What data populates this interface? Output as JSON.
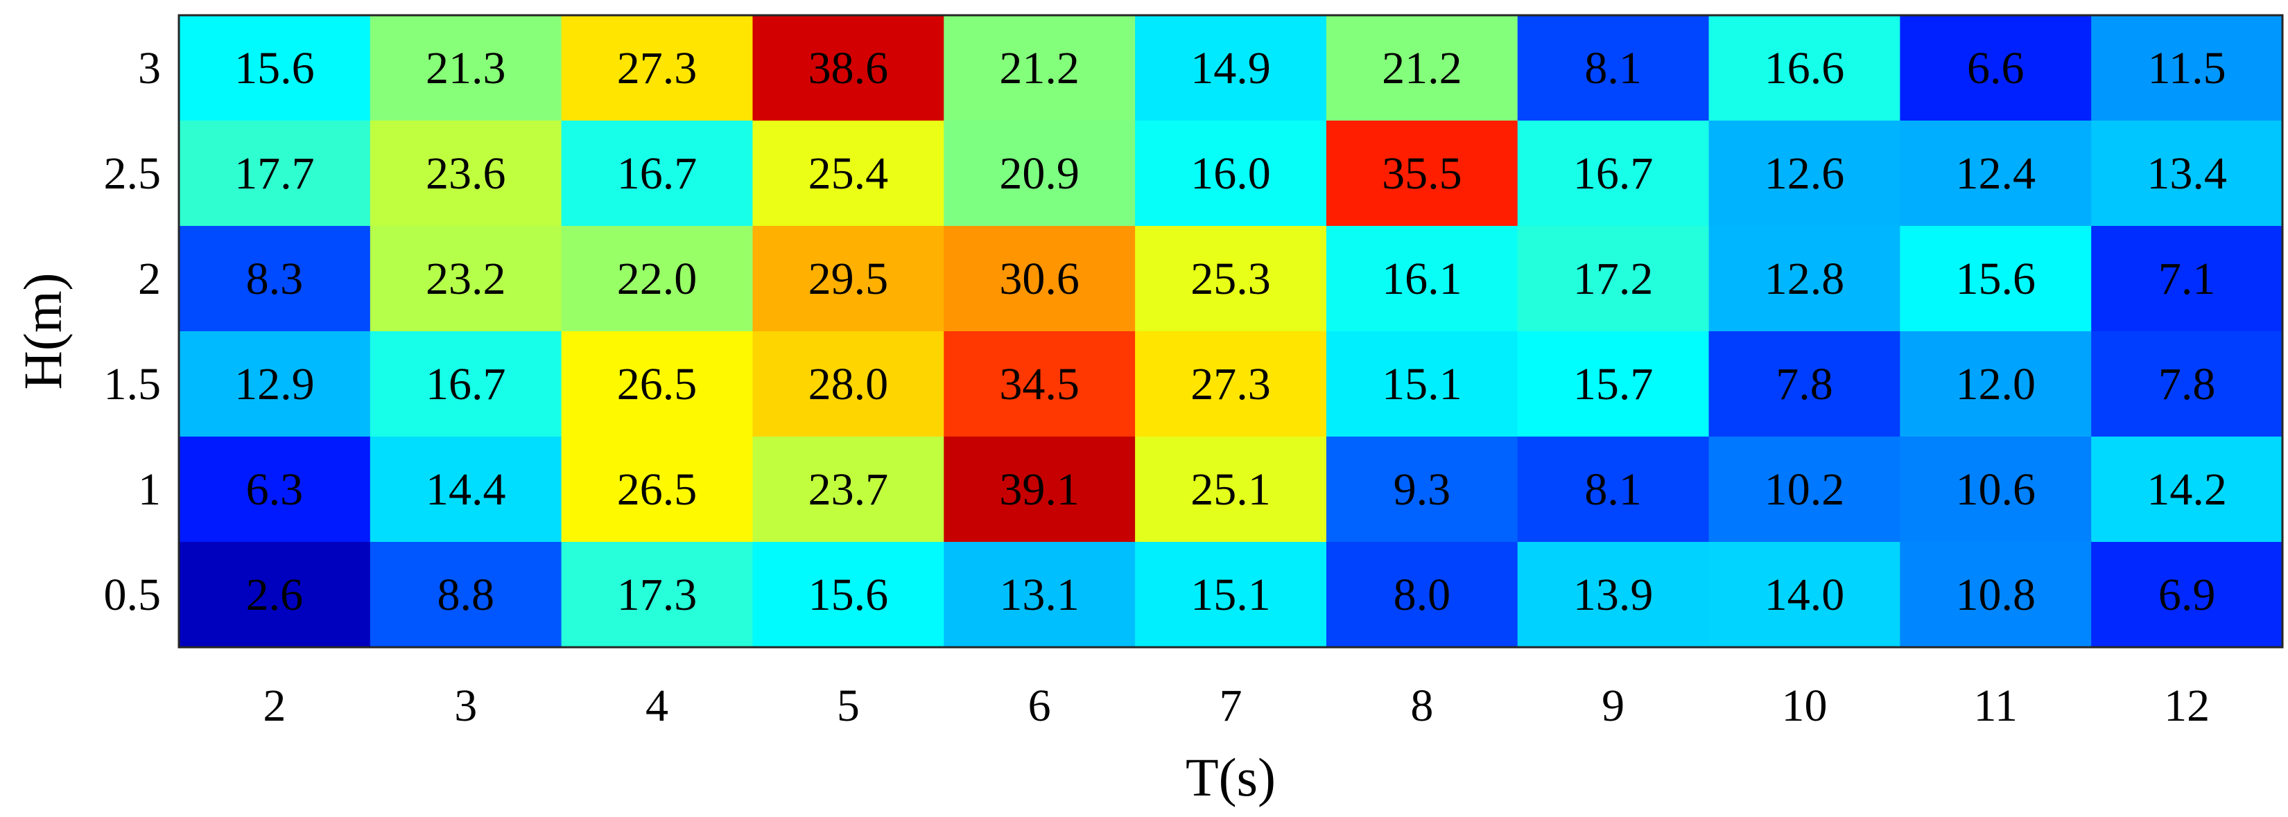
{
  "chart_data": {
    "type": "heatmap",
    "title": "",
    "xlabel": "T(s)",
    "ylabel": "H(m)",
    "x_categories": [
      "2",
      "3",
      "4",
      "5",
      "6",
      "7",
      "8",
      "9",
      "10",
      "11",
      "12"
    ],
    "y_categories": [
      "3",
      "2.5",
      "2",
      "1.5",
      "1",
      "0.5"
    ],
    "values": [
      [
        15.6,
        21.3,
        27.3,
        38.6,
        21.2,
        14.9,
        21.2,
        8.1,
        16.6,
        6.6,
        11.5
      ],
      [
        17.7,
        23.6,
        16.7,
        25.4,
        20.9,
        16.0,
        35.5,
        16.7,
        12.6,
        12.4,
        13.4
      ],
      [
        8.3,
        23.2,
        22.0,
        29.5,
        30.6,
        25.3,
        16.1,
        17.2,
        12.8,
        15.6,
        7.1
      ],
      [
        12.9,
        16.7,
        26.5,
        28.0,
        34.5,
        27.3,
        15.1,
        15.7,
        7.8,
        12.0,
        7.8
      ],
      [
        6.3,
        14.4,
        26.5,
        23.7,
        39.1,
        25.1,
        9.3,
        8.1,
        10.2,
        10.6,
        14.2
      ],
      [
        2.6,
        8.8,
        17.3,
        15.6,
        13.1,
        15.1,
        8.0,
        13.9,
        14.0,
        10.8,
        6.9
      ]
    ],
    "value_labels": [
      [
        "15.6",
        "21.3",
        "27.3",
        "38.6",
        "21.2",
        "14.9",
        "21.2",
        "8.1",
        "16.6",
        "6.6",
        "11.5"
      ],
      [
        "17.7",
        "23.6",
        "16.7",
        "25.4",
        "20.9",
        "16.0",
        "35.5",
        "16.7",
        "12.6",
        "12.4",
        "13.4"
      ],
      [
        "8.3",
        "23.2",
        "22.0",
        "29.5",
        "30.6",
        "25.3",
        "16.1",
        "17.2",
        "12.8",
        "15.6",
        "7.1"
      ],
      [
        "12.9",
        "16.7",
        "26.5",
        "28.0",
        "34.5",
        "27.3",
        "15.1",
        "15.7",
        "7.8",
        "12.0",
        "7.8"
      ],
      [
        "6.3",
        "14.4",
        "26.5",
        "23.7",
        "39.1",
        "25.1",
        "9.3",
        "8.1",
        "10.2",
        "10.6",
        "14.2"
      ],
      [
        "2.6",
        "8.8",
        "17.3",
        "15.6",
        "13.1",
        "15.1",
        "8.0",
        "13.9",
        "14.0",
        "10.8",
        "6.9"
      ]
    ],
    "color_range": [
      0,
      42
    ],
    "colormap": "jet",
    "grid": false,
    "legend": "none"
  }
}
